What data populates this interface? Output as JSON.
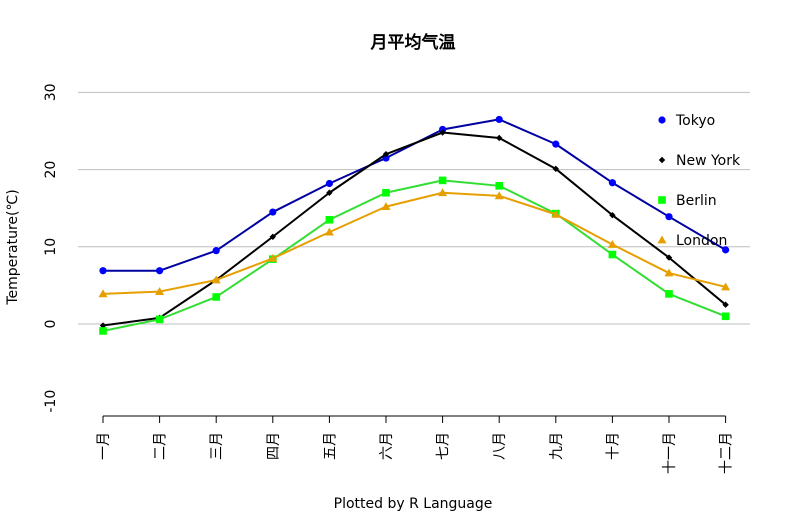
{
  "chart_data": {
    "type": "line",
    "title": "月平均气温",
    "xlabel": "Plotted by R Language",
    "ylabel": "Temperature(℃)",
    "categories": [
      "一月",
      "二月",
      "三月",
      "四月",
      "五月",
      "六月",
      "七月",
      "八月",
      "九月",
      "十月",
      "十一月",
      "十二月"
    ],
    "ylim": [
      -10,
      30
    ],
    "yticks": [
      -10,
      0,
      10,
      20,
      30
    ],
    "grid": true,
    "legend_position": "top-right",
    "series": [
      {
        "name": "Tokyo",
        "color": "#0000ff",
        "line_color": "#0000a0",
        "marker": "circle",
        "values": [
          6.9,
          6.9,
          9.5,
          14.5,
          18.2,
          21.5,
          25.2,
          26.5,
          23.3,
          18.3,
          13.9,
          9.6
        ]
      },
      {
        "name": "New York",
        "color": "#000000",
        "line_color": "#000000",
        "marker": "diamond",
        "values": [
          -0.2,
          0.8,
          5.7,
          11.3,
          17.0,
          22.0,
          24.8,
          24.1,
          20.1,
          14.1,
          8.6,
          2.5
        ]
      },
      {
        "name": "Berlin",
        "color": "#00ff00",
        "line_color": "#33dd33",
        "marker": "square",
        "values": [
          -0.9,
          0.6,
          3.5,
          8.4,
          13.5,
          17.0,
          18.6,
          17.9,
          14.3,
          9.0,
          3.9,
          1.0
        ]
      },
      {
        "name": "London",
        "color": "#e69f00",
        "line_color": "#e69f00",
        "marker": "triangle",
        "values": [
          3.9,
          4.2,
          5.7,
          8.5,
          11.9,
          15.2,
          17.0,
          16.6,
          14.2,
          10.3,
          6.6,
          4.8
        ]
      }
    ]
  }
}
